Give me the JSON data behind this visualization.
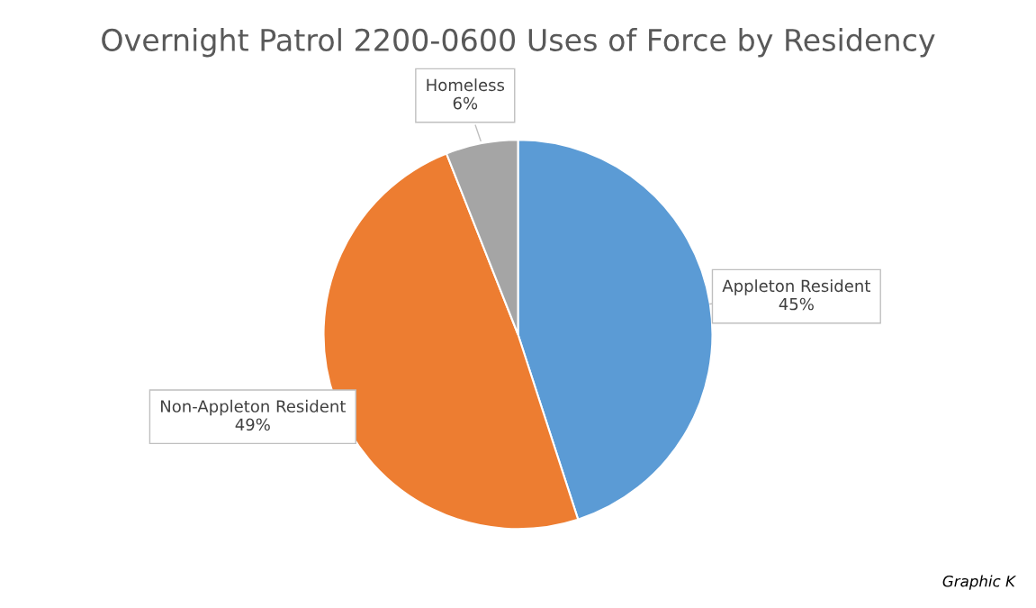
{
  "chart_data": {
    "type": "pie",
    "title": "Overnight Patrol 2200-0600 Uses of Force by Residency",
    "categories": [
      "Appleton Resident",
      "Non-Appleton Resident",
      "Homeless"
    ],
    "values": [
      45,
      49,
      6
    ],
    "value_labels": [
      "45%",
      "49%",
      "6%"
    ],
    "colors": [
      "#5b9bd5",
      "#ed7d31",
      "#a5a5a5"
    ],
    "annotations": [
      "Graphic K"
    ]
  }
}
